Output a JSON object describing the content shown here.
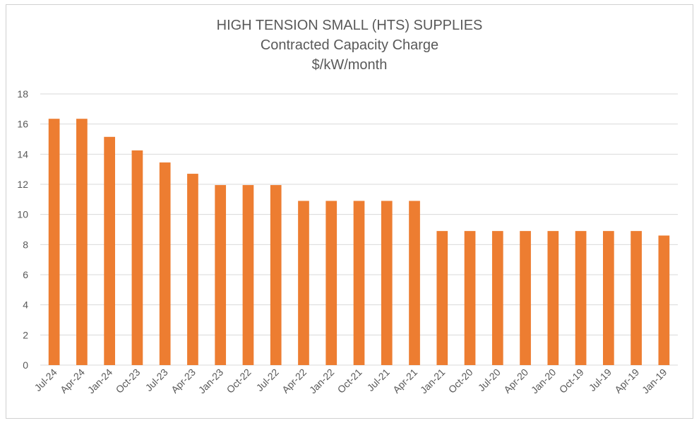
{
  "chart_data": {
    "type": "bar",
    "title": "HIGH TENSION SMALL (HTS) SUPPLIES",
    "subtitle": "Contracted Capacity Charge",
    "unit_line": "$/kW/month",
    "xlabel": "",
    "ylabel": "",
    "ylim": [
      0,
      18
    ],
    "yticks": [
      "0",
      "2",
      "4",
      "6",
      "8",
      "10",
      "12",
      "14",
      "16",
      "18"
    ],
    "grid": true,
    "legend": "none",
    "bar_color": "#ED7D31",
    "categories": [
      "Jul-24",
      "Apr-24",
      "Jan-24",
      "Oct-23",
      "Jul-23",
      "Apr-23",
      "Jan-23",
      "Oct-22",
      "Jul-22",
      "Apr-22",
      "Jan-22",
      "Oct-21",
      "Jul-21",
      "Apr-21",
      "Jan-21",
      "Oct-20",
      "Jul-20",
      "Apr-20",
      "Jan-20",
      "Oct-19",
      "Jul-19",
      "Apr-19",
      "Jan-19"
    ],
    "values": [
      16.35,
      16.35,
      15.15,
      14.25,
      13.45,
      12.7,
      11.95,
      11.95,
      11.95,
      10.9,
      10.9,
      10.9,
      10.9,
      10.9,
      8.9,
      8.9,
      8.9,
      8.9,
      8.9,
      8.9,
      8.9,
      8.9,
      8.6
    ]
  }
}
